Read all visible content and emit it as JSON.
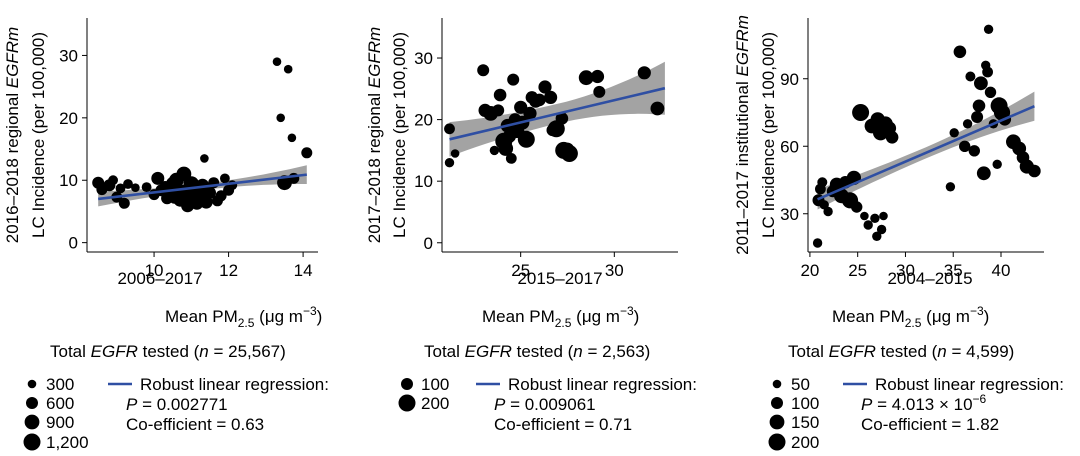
{
  "chart_data": [
    {
      "type": "scatter",
      "panel": "left",
      "ylabel_pre": "2016–2018 regional ",
      "ylabel_em": "EGFRm",
      "ylabel_line2": "LC Incidence (per 100,000)",
      "xlabel_period": "2006–2017",
      "xlabel_main": "Mean PM",
      "xlabel_sub": "2.5",
      "xlabel_unit": " (μg m",
      "xlabel_exp": "−3",
      "xlabel_close": ")",
      "total_pre": "Total ",
      "total_em": "EGFR",
      "total_mid": " tested (",
      "total_n": "n",
      "total_post": " = 25,567)",
      "xlim": [
        8.2,
        14.4
      ],
      "ylim": [
        -1.5,
        36
      ],
      "xticks": [
        10,
        12,
        14
      ],
      "yticks": [
        0,
        10,
        20,
        30
      ],
      "size_legend": {
        "labels": [
          "300",
          "600",
          "900",
          "1,200"
        ],
        "values": [
          300,
          600,
          900,
          1200
        ],
        "max": 1200
      },
      "regression": {
        "x": [
          8.5,
          14.1
        ],
        "y": [
          7.0,
          10.9
        ],
        "band": [
          1.2,
          0.5,
          1.5
        ],
        "color": "#2f4fa3"
      },
      "regression_legend": {
        "title": "Robust linear regression:",
        "p_label": "P",
        "p_text": " = 0.002771",
        "coef": "Co-efficient = 0.63"
      },
      "points": [
        [
          8.5,
          9.6,
          600
        ],
        [
          8.6,
          8.5,
          500
        ],
        [
          8.8,
          9.2,
          600
        ],
        [
          8.9,
          10,
          400
        ],
        [
          9.0,
          7.3,
          500
        ],
        [
          9.1,
          8.7,
          400
        ],
        [
          9.2,
          6.3,
          500
        ],
        [
          9.3,
          9.4,
          400
        ],
        [
          9.5,
          8.8,
          300
        ],
        [
          9.8,
          8.9,
          400
        ],
        [
          10.0,
          7.7,
          500
        ],
        [
          10.1,
          10.3,
          700
        ],
        [
          10.2,
          8.4,
          600
        ],
        [
          10.3,
          9.0,
          500
        ],
        [
          10.35,
          7.1,
          600
        ],
        [
          10.4,
          8.7,
          900
        ],
        [
          10.5,
          9.5,
          700
        ],
        [
          10.55,
          7.2,
          600
        ],
        [
          10.6,
          10.0,
          900
        ],
        [
          10.7,
          6.8,
          700
        ],
        [
          10.75,
          8.2,
          800
        ],
        [
          10.8,
          11.0,
          900
        ],
        [
          10.9,
          5.9,
          700
        ],
        [
          10.95,
          7.6,
          900
        ],
        [
          11.0,
          9.4,
          1000
        ],
        [
          11.1,
          8.1,
          800
        ],
        [
          11.15,
          6.3,
          700
        ],
        [
          11.25,
          7.5,
          800
        ],
        [
          11.3,
          9.2,
          700
        ],
        [
          11.35,
          13.5,
          300
        ],
        [
          11.4,
          6.5,
          700
        ],
        [
          11.5,
          8.0,
          600
        ],
        [
          11.6,
          9.6,
          500
        ],
        [
          11.7,
          6.7,
          500
        ],
        [
          11.8,
          7.5,
          500
        ],
        [
          11.9,
          10.3,
          400
        ],
        [
          12.0,
          8.4,
          500
        ],
        [
          12.1,
          9.2,
          400
        ],
        [
          13.3,
          29,
          300
        ],
        [
          13.4,
          20,
          300
        ],
        [
          13.5,
          9.6,
          900
        ],
        [
          13.6,
          27.8,
          300
        ],
        [
          13.7,
          16.8,
          300
        ],
        [
          13.75,
          10.3,
          500
        ],
        [
          14.1,
          14.4,
          500
        ]
      ]
    },
    {
      "type": "scatter",
      "panel": "middle",
      "ylabel_pre": "2017–2018 regional ",
      "ylabel_em": "EGFRm",
      "ylabel_line2": "LC Incidence (per 100,000)",
      "xlabel_period": "2015–2017",
      "xlabel_main": "Mean PM",
      "xlabel_sub": "2.5",
      "xlabel_unit": " (μg m",
      "xlabel_exp": "−3",
      "xlabel_close": ")",
      "total_pre": "Total ",
      "total_em": "EGFR",
      "total_mid": " tested (",
      "total_n": "n",
      "total_post": " = 2,563)",
      "xlim": [
        20.8,
        33.4
      ],
      "ylim": [
        -1.5,
        36.5
      ],
      "xticks": [
        25,
        30
      ],
      "yticks": [
        0,
        10,
        20,
        30
      ],
      "size_legend": {
        "labels": [
          "100",
          "200"
        ],
        "values": [
          100,
          200
        ],
        "max": 200
      },
      "regression": {
        "x": [
          21.2,
          32.7
        ],
        "y": [
          16.8,
          25.1
        ],
        "band": [
          2.8,
          1.6,
          4.3
        ],
        "color": "#2f4fa3"
      },
      "regression_legend": {
        "title": "Robust linear regression:",
        "p_label": "P",
        "p_text": " = 0.009061",
        "coef": "Co-efficient = 0.71"
      },
      "points": [
        [
          21.2,
          18.5,
          80
        ],
        [
          21.2,
          13,
          60
        ],
        [
          21.5,
          14.5,
          50
        ],
        [
          23,
          28,
          100
        ],
        [
          23.1,
          21.5,
          120
        ],
        [
          23.4,
          21,
          150
        ],
        [
          23.6,
          15,
          60
        ],
        [
          23.8,
          21.5,
          100
        ],
        [
          23.9,
          24,
          110
        ],
        [
          24.1,
          16.5,
          200
        ],
        [
          24.2,
          15.3,
          150
        ],
        [
          24.3,
          19,
          130
        ],
        [
          24.4,
          17.3,
          120
        ],
        [
          24.5,
          13.7,
          80
        ],
        [
          24.6,
          26.5,
          100
        ],
        [
          24.7,
          20,
          110
        ],
        [
          24.8,
          18.2,
          150
        ],
        [
          25,
          22,
          120
        ],
        [
          25.1,
          19.5,
          130
        ],
        [
          25.3,
          16.8,
          200
        ],
        [
          25.5,
          21,
          120
        ],
        [
          25.6,
          23.6,
          110
        ],
        [
          25.8,
          23,
          120
        ],
        [
          26,
          23.2,
          110
        ],
        [
          26.3,
          25.3,
          120
        ],
        [
          26.6,
          23.6,
          120
        ],
        [
          26.7,
          18.3,
          100
        ],
        [
          26.9,
          18.5,
          200
        ],
        [
          27.2,
          20.2,
          110
        ],
        [
          27.3,
          15,
          200
        ],
        [
          27.5,
          15.2,
          120
        ],
        [
          27.6,
          14.5,
          200
        ],
        [
          28.5,
          26.8,
          150
        ],
        [
          29.1,
          27,
          120
        ],
        [
          29.2,
          24.5,
          100
        ],
        [
          31.6,
          27.6,
          120
        ],
        [
          32.3,
          21.8,
          130
        ]
      ]
    },
    {
      "type": "scatter",
      "panel": "right",
      "ylabel_pre": "2011–2017 institutional ",
      "ylabel_em": "EGFRm",
      "ylabel_line2": "LC Incidence (per 100,000)",
      "xlabel_period": "2004–2015",
      "xlabel_main": "Mean PM",
      "xlabel_sub": "2.5",
      "xlabel_unit": " (μg m",
      "xlabel_exp": "−3",
      "xlabel_close": ")",
      "total_pre": "Total ",
      "total_em": "EGFR",
      "total_mid": " tested (",
      "total_n": "n",
      "total_post": " = 4,599)",
      "xlim": [
        19.8,
        44.5
      ],
      "ylim": [
        13,
        117
      ],
      "xticks": [
        20,
        25,
        30,
        35,
        40
      ],
      "yticks": [
        30,
        60,
        90
      ],
      "size_legend": {
        "labels": [
          "50",
          "100",
          "150",
          "200"
        ],
        "values": [
          50,
          100,
          150,
          200
        ],
        "max": 200
      },
      "regression": {
        "x": [
          20.8,
          43.5
        ],
        "y": [
          36.4,
          77.8
        ],
        "band": [
          4.5,
          2.5,
          6.5
        ],
        "color": "#2f4fa3"
      },
      "regression_legend": {
        "title": "Robust linear regression:",
        "p_label": "P",
        "p_text": " = 4.013 × 10",
        "p_exp": "−6",
        "coef": "Co-efficient = 1.82"
      },
      "points": [
        [
          20.8,
          17,
          60
        ],
        [
          20.9,
          36,
          100
        ],
        [
          21.1,
          41,
          80
        ],
        [
          21.3,
          44,
          70
        ],
        [
          21.5,
          34,
          60
        ],
        [
          21.9,
          31,
          60
        ],
        [
          22.4,
          40,
          100
        ],
        [
          22.8,
          43,
          130
        ],
        [
          23.3,
          38,
          150
        ],
        [
          23.7,
          44,
          110
        ],
        [
          24.2,
          36,
          180
        ],
        [
          24.6,
          46,
          140
        ],
        [
          24.9,
          33,
          90
        ],
        [
          25.3,
          75,
          200
        ],
        [
          25.7,
          29,
          50
        ],
        [
          26.1,
          25,
          60
        ],
        [
          26.5,
          69,
          150
        ],
        [
          26.8,
          28,
          60
        ],
        [
          27,
          20,
          60
        ],
        [
          27.1,
          72,
          140
        ],
        [
          27.4,
          66,
          160
        ],
        [
          27.5,
          23,
          60
        ],
        [
          27.7,
          29,
          50
        ],
        [
          27.9,
          70,
          150
        ],
        [
          28.3,
          68,
          130
        ],
        [
          28.6,
          64,
          110
        ],
        [
          34.7,
          42,
          60
        ],
        [
          35.1,
          66,
          60
        ],
        [
          35.7,
          102,
          110
        ],
        [
          36.2,
          60,
          90
        ],
        [
          36.5,
          70,
          60
        ],
        [
          36.8,
          91,
          70
        ],
        [
          37.2,
          58,
          90
        ],
        [
          37.5,
          73,
          100
        ],
        [
          37.7,
          78,
          110
        ],
        [
          37.9,
          88,
          130
        ],
        [
          38.2,
          48,
          130
        ],
        [
          38.4,
          96,
          60
        ],
        [
          38.6,
          93,
          80
        ],
        [
          38.7,
          112,
          60
        ],
        [
          38.9,
          84,
          90
        ],
        [
          39.2,
          70,
          60
        ],
        [
          39.6,
          52,
          60
        ],
        [
          39.8,
          78,
          200
        ],
        [
          40.1,
          75,
          180
        ],
        [
          40.4,
          72,
          110
        ],
        [
          41.3,
          62,
          150
        ],
        [
          41.9,
          59,
          130
        ],
        [
          42.3,
          55,
          110
        ],
        [
          42.7,
          51,
          140
        ],
        [
          43.5,
          49,
          110
        ]
      ]
    }
  ]
}
